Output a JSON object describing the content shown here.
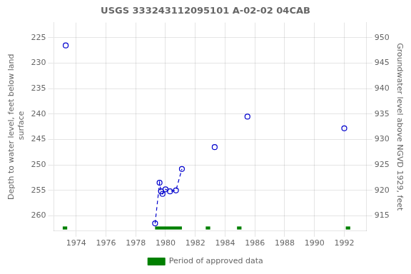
{
  "chart_data": {
    "type": "scatter",
    "title": "USGS 333243112095101 A-02-02 04CAB",
    "y_label": "Depth to water level, feet below land\n surface",
    "y2_label": "Groundwater level above NGVD 1929, feet",
    "xlim": [
      1972.5,
      1993.5
    ],
    "xticks": [
      1974,
      1976,
      1978,
      1980,
      1982,
      1984,
      1986,
      1988,
      1990,
      1992
    ],
    "ylim": [
      263,
      222
    ],
    "yticks": [
      225,
      230,
      235,
      240,
      245,
      250,
      255,
      260
    ],
    "y2lim": [
      912,
      953
    ],
    "y2ticks": [
      950,
      945,
      940,
      935,
      930,
      925,
      920,
      915
    ],
    "grid": true,
    "legend": "bottom",
    "x": [
      1973.3,
      1979.3,
      1979.6,
      1979.7,
      1979.8,
      1980.0,
      1980.3,
      1980.7,
      1981.1,
      1983.3,
      1985.5,
      1992.0
    ],
    "series": [
      {
        "type": "scatter",
        "color": "#0000CD",
        "marker": "open_circle",
        "values": [
          226.5,
          261.5,
          253.5,
          255.2,
          255.7,
          254.8,
          255.2,
          255.0,
          250.8,
          246.5,
          240.5,
          242.8
        ]
      },
      {
        "type": "line",
        "color": "#0000CD",
        "line_style": "dashed",
        "marker": "none",
        "values": [
          null,
          261.5,
          253.5,
          255.2,
          255.7,
          254.8,
          255.2,
          255.0,
          250.8,
          null,
          null,
          null
        ]
      },
      {
        "type": "span",
        "name": "Period of approved data",
        "color": "#008000",
        "starts": [
          1973.1,
          1979.3,
          1982.7,
          1984.8,
          1992.1
        ],
        "widths": [
          0.3,
          1.8,
          0.3,
          0.3,
          0.3
        ],
        "y": 262.4,
        "height": 0.6
      }
    ]
  }
}
